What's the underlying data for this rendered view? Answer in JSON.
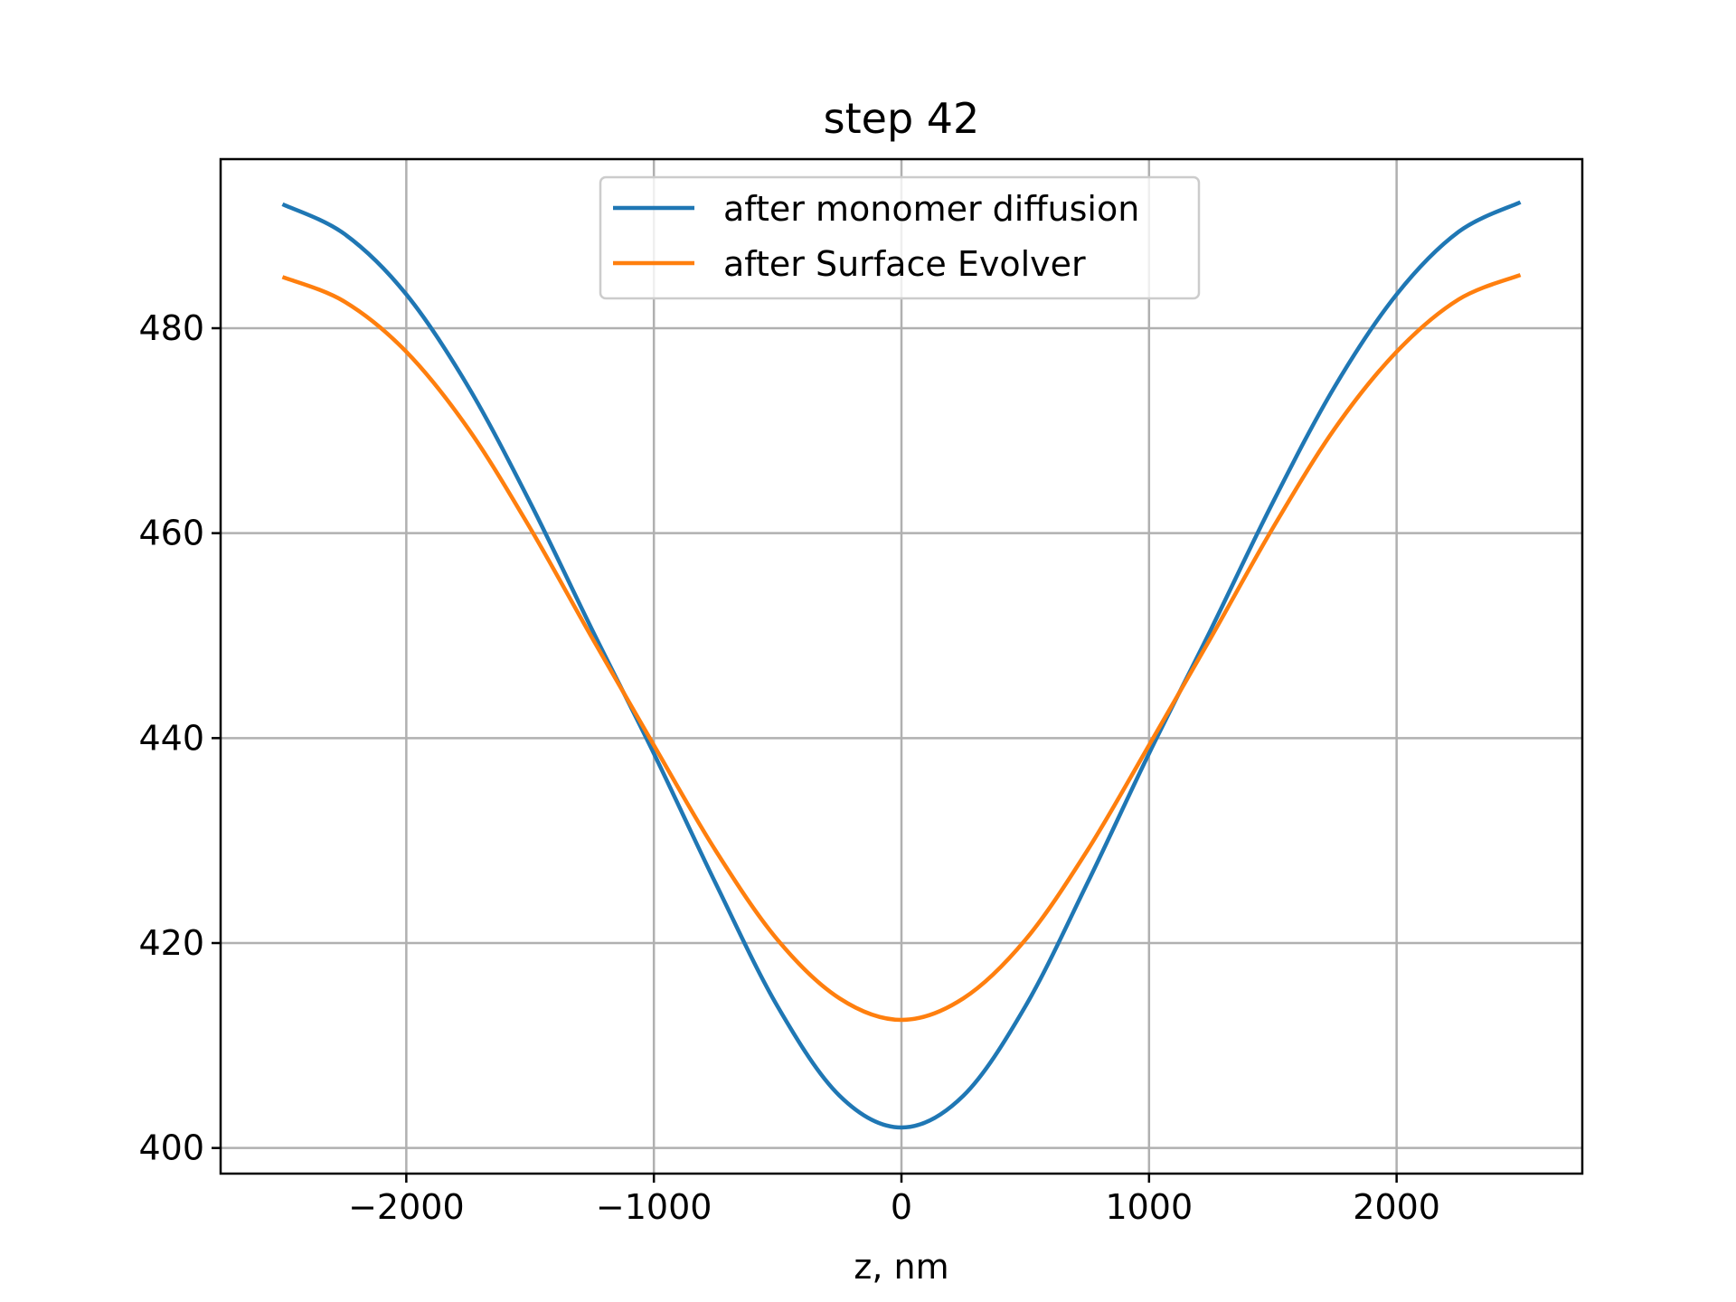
{
  "chart_data": {
    "type": "line",
    "title": "step 42",
    "xlabel": "z, nm",
    "ylabel": "",
    "xlim": [
      -2750,
      2750
    ],
    "ylim": [
      397.5,
      496.5
    ],
    "x_ticks": [
      -2000,
      -1000,
      0,
      1000,
      2000
    ],
    "x_tick_labels": [
      "−2000",
      "−1000",
      "0",
      "1000",
      "2000"
    ],
    "y_ticks": [
      400,
      420,
      440,
      460,
      480
    ],
    "y_tick_labels": [
      "400",
      "420",
      "440",
      "460",
      "480"
    ],
    "grid": true,
    "legend": "upper center",
    "x": [
      -2500,
      -2250,
      -2000,
      -1750,
      -1500,
      -1250,
      -1000,
      -750,
      -500,
      -250,
      0,
      250,
      500,
      750,
      1000,
      1250,
      1500,
      1750,
      2000,
      2250,
      2500
    ],
    "series": [
      {
        "name": "after monomer diffusion",
        "color": "#1f77b4",
        "values": [
          492.1,
          489.2,
          483.3,
          474.3,
          463.0,
          450.6,
          438.5,
          425.8,
          413.8,
          405.1,
          402.0,
          405.1,
          413.8,
          425.8,
          438.5,
          450.6,
          463.0,
          474.3,
          483.3,
          489.4,
          492.3
        ]
      },
      {
        "name": "after Surface Evolver",
        "color": "#ff7f0e",
        "values": [
          485.0,
          482.6,
          477.7,
          470.2,
          460.5,
          449.8,
          439.3,
          429.0,
          420.3,
          414.6,
          412.5,
          414.6,
          420.3,
          429.0,
          439.3,
          449.8,
          460.5,
          470.2,
          477.7,
          482.8,
          485.2
        ]
      }
    ]
  }
}
